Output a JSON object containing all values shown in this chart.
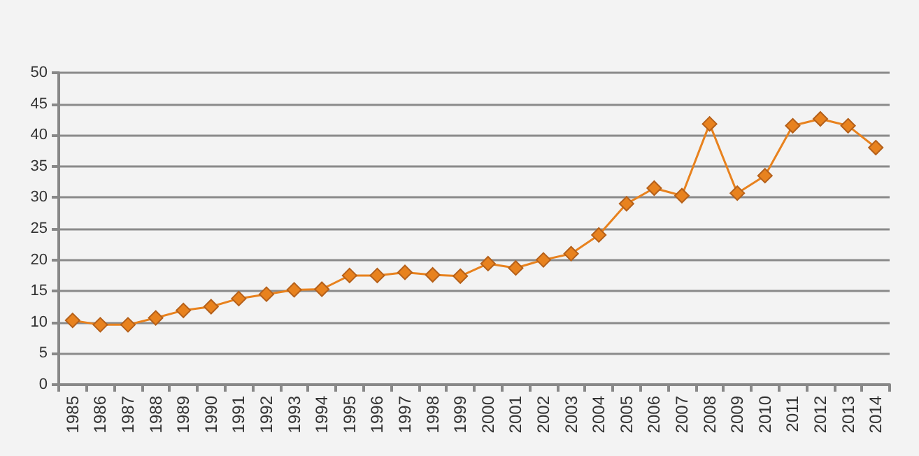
{
  "chart_data": {
    "type": "line",
    "categories": [
      "1985",
      "1986",
      "1987",
      "1988",
      "1989",
      "1990",
      "1991",
      "1992",
      "1993",
      "1994",
      "1995",
      "1996",
      "1997",
      "1998",
      "1999",
      "2000",
      "2001",
      "2002",
      "2003",
      "2004",
      "2005",
      "2006",
      "2007",
      "2008",
      "2009",
      "2010",
      "2011",
      "2012",
      "2013",
      "2014"
    ],
    "series": [
      {
        "color": "#e8821e",
        "values": [
          10.3,
          9.6,
          9.6,
          10.7,
          11.9,
          12.5,
          13.8,
          14.5,
          15.2,
          15.3,
          17.5,
          17.5,
          18,
          17.6,
          17.4,
          19.4,
          18.7,
          20,
          21,
          24,
          29,
          31.5,
          30.3,
          41.8,
          30.7,
          33.5,
          41.5,
          42.6,
          41.5,
          38
        ]
      }
    ],
    "ylim": [
      0,
      50
    ],
    "yticks": [
      0,
      5,
      10,
      15,
      20,
      25,
      30,
      35,
      40,
      45,
      50
    ],
    "grid": "y",
    "marker": "diamond",
    "line_style": "solid"
  }
}
